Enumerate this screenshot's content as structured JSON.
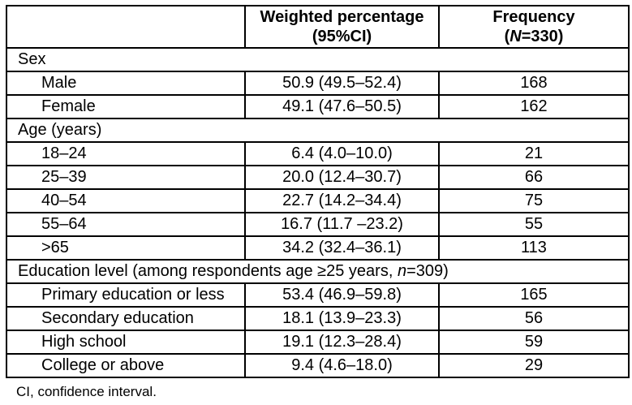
{
  "table": {
    "header": {
      "weighted_line1": "Weighted percentage",
      "weighted_line2": "(95%CI)",
      "frequency_line1": "Frequency",
      "frequency_line2_pre": "(",
      "frequency_line2_italic": "N",
      "frequency_line2_post": "=330)"
    },
    "sections": [
      {
        "label": "Sex",
        "label_italic": "",
        "label_rest": "",
        "rows": [
          {
            "category": "Male",
            "weighted_pct": "50.9 (49.5–52.4)",
            "frequency": "168"
          },
          {
            "category": "Female",
            "weighted_pct": "49.1 (47.6–50.5)",
            "frequency": "162"
          }
        ]
      },
      {
        "label": "Age (years)",
        "label_italic": "",
        "label_rest": "",
        "rows": [
          {
            "category": "18–24",
            "weighted_pct": "6.4 (4.0–10.0)",
            "frequency": "21"
          },
          {
            "category": "25–39",
            "weighted_pct": "20.0 (12.4–30.7)",
            "frequency": "66"
          },
          {
            "category": "40–54",
            "weighted_pct": "22.7 (14.2–34.4)",
            "frequency": "75"
          },
          {
            "category": "55–64",
            "weighted_pct": "16.7 (11.7 –23.2)",
            "frequency": "55"
          },
          {
            "category": ">65",
            "weighted_pct": "34.2 (32.4–36.1)",
            "frequency": "113"
          }
        ]
      },
      {
        "label": "Education level (among respondents age ≥25 years, ",
        "label_italic": "n",
        "label_rest": "=309)",
        "rows": [
          {
            "category": "Primary education or less",
            "weighted_pct": "53.4 (46.9–59.8)",
            "frequency": "165"
          },
          {
            "category": "Secondary education",
            "weighted_pct": "18.1 (13.9–23.3)",
            "frequency": "56"
          },
          {
            "category": "High school",
            "weighted_pct": "19.1 (12.3–28.4)",
            "frequency": "59"
          },
          {
            "category": "College or above",
            "weighted_pct": "9.4 (4.6–18.0)",
            "frequency": "29"
          }
        ]
      }
    ],
    "footnote": "CI, confidence interval."
  }
}
